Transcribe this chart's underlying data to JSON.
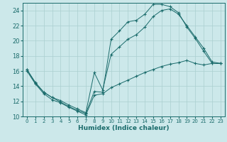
{
  "xlabel": "Humidex (Indice chaleur)",
  "bg_color": "#cce8ea",
  "grid_color": "#aacfcf",
  "line_color": "#1a6b6b",
  "xlim": [
    -0.5,
    23.5
  ],
  "ylim": [
    10,
    25
  ],
  "xticks": [
    0,
    1,
    2,
    3,
    4,
    5,
    6,
    7,
    8,
    9,
    10,
    11,
    12,
    13,
    14,
    15,
    16,
    17,
    18,
    19,
    20,
    21,
    22,
    23
  ],
  "yticks": [
    10,
    12,
    14,
    16,
    18,
    20,
    22,
    24
  ],
  "line1_x": [
    0,
    1,
    2,
    3,
    4,
    5,
    6,
    7,
    8,
    9,
    10,
    11,
    12,
    13,
    14,
    15,
    16,
    17,
    18,
    19,
    20,
    21,
    22,
    23
  ],
  "line1_y": [
    16.2,
    14.4,
    13.2,
    12.5,
    11.9,
    11.3,
    10.8,
    10.4,
    13.3,
    13.2,
    20.2,
    21.3,
    22.5,
    22.7,
    23.5,
    24.8,
    24.8,
    24.5,
    23.7,
    21.8,
    20.3,
    18.6,
    17.0,
    17.0
  ],
  "line2_x": [
    0,
    1,
    2,
    3,
    4,
    5,
    6,
    7,
    8,
    9,
    10,
    11,
    12,
    13,
    14,
    15,
    16,
    17,
    18,
    19,
    20,
    21,
    22,
    23
  ],
  "line2_y": [
    16.2,
    14.5,
    13.2,
    12.5,
    12.1,
    11.5,
    11.0,
    10.5,
    15.8,
    13.5,
    18.2,
    19.2,
    20.2,
    20.8,
    21.8,
    23.2,
    24.0,
    24.2,
    23.5,
    22.0,
    20.5,
    19.0,
    17.2,
    17.0
  ],
  "line3_x": [
    0,
    1,
    2,
    3,
    4,
    5,
    6,
    7,
    8,
    9,
    10,
    11,
    12,
    13,
    14,
    15,
    16,
    17,
    18,
    19,
    20,
    21,
    22,
    23
  ],
  "line3_y": [
    16.0,
    14.3,
    13.0,
    12.2,
    11.8,
    11.2,
    10.7,
    10.2,
    12.8,
    13.0,
    13.8,
    14.3,
    14.8,
    15.3,
    15.8,
    16.2,
    16.6,
    16.9,
    17.1,
    17.4,
    17.0,
    16.8,
    17.0,
    17.0
  ]
}
